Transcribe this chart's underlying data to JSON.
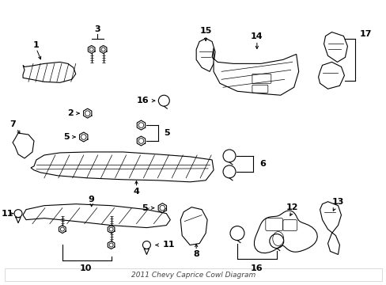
{
  "title": "2011 Chevy Caprice Cowl Diagram",
  "bg_color": "#ffffff",
  "line_color": "#000000",
  "fig_width": 4.89,
  "fig_height": 3.6,
  "dpi": 100
}
